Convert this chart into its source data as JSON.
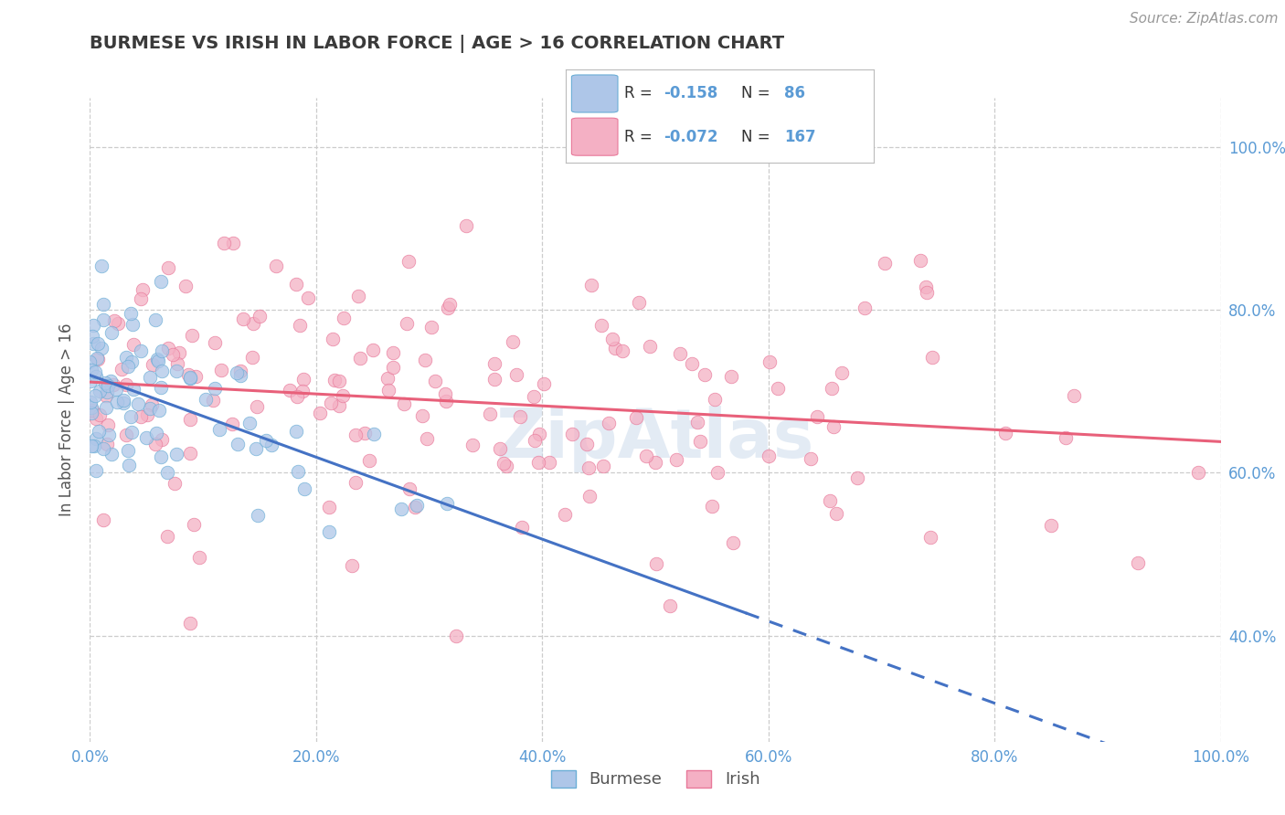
{
  "title": "BURMESE VS IRISH IN LABOR FORCE | AGE > 16 CORRELATION CHART",
  "source": "Source: ZipAtlas.com",
  "ylabel": "In Labor Force | Age > 16",
  "xlim": [
    0.0,
    1.0
  ],
  "ylim": [
    0.27,
    1.06
  ],
  "xtick_vals": [
    0.0,
    0.2,
    0.4,
    0.6,
    0.8,
    1.0
  ],
  "xticklabels": [
    "0.0%",
    "20.0%",
    "40.0%",
    "60.0%",
    "80.0%",
    "100.0%"
  ],
  "ytick_vals": [
    0.4,
    0.6,
    0.8,
    1.0
  ],
  "yticklabels": [
    "40.0%",
    "60.0%",
    "80.0%",
    "100.0%"
  ],
  "burmese_face": "#aec6e8",
  "burmese_edge": "#6baed6",
  "irish_face": "#f4b0c4",
  "irish_edge": "#e8799a",
  "burmese_line": "#4472c4",
  "irish_line": "#e8607a",
  "R_burmese": -0.158,
  "N_burmese": 86,
  "R_irish": -0.072,
  "N_irish": 167,
  "bg_color": "#ffffff",
  "grid_color": "#cccccc",
  "title_color": "#3a3a3a",
  "tick_color": "#5b9bd5",
  "watermark": "ZipAtlas",
  "watermark_color": "#c8d8eb",
  "legend_burmese": "Burmese",
  "legend_irish": "Irish",
  "seed": 42
}
